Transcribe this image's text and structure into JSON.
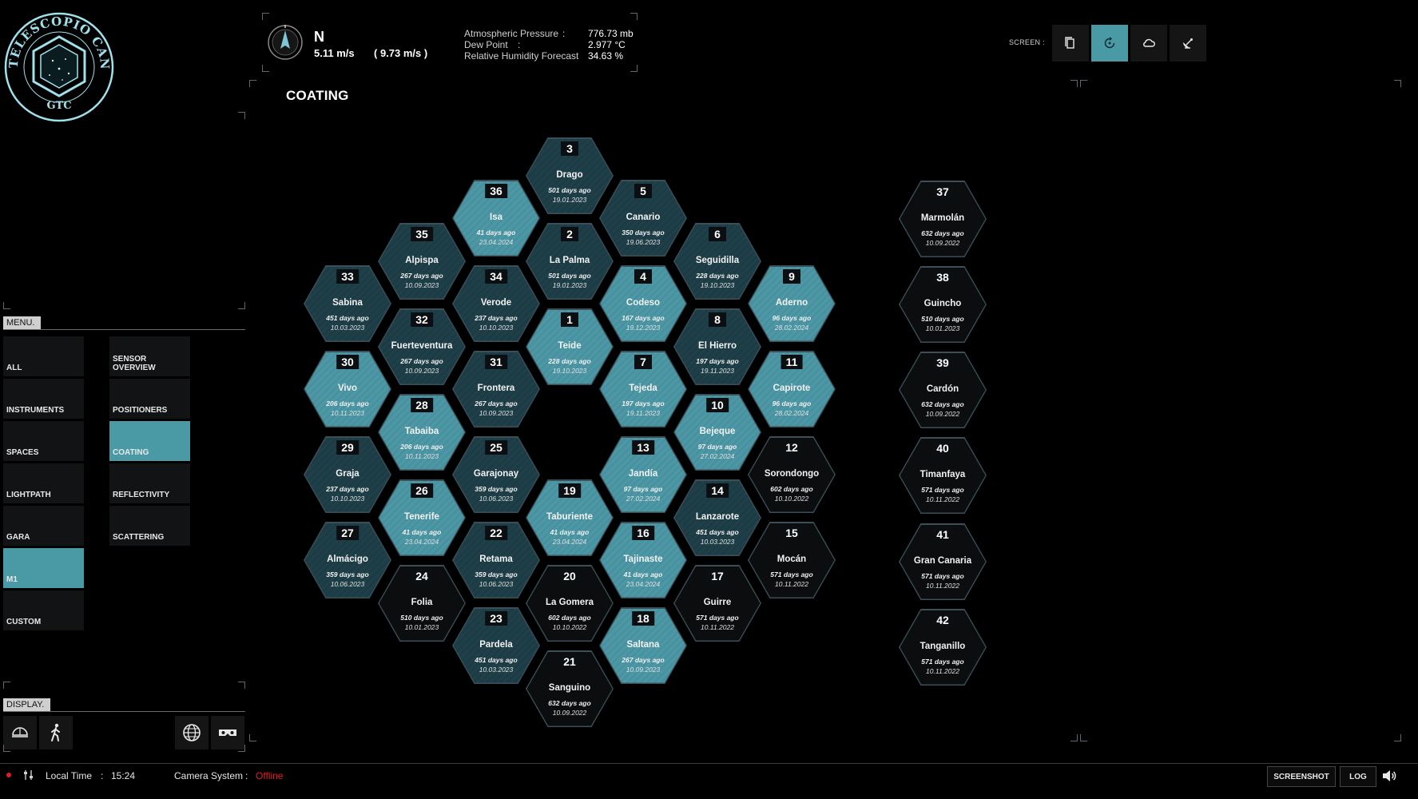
{
  "logo": {
    "top_text": "GRAN TELESCOPIO CANARIAS",
    "bottom_text": "GTC"
  },
  "weather": {
    "wind_direction": "N",
    "wind_speed": "5.11 m/s",
    "wind_gust": "( 9.73 m/s )",
    "rows": [
      {
        "label": "Atmospheric Pressure",
        "colon": ":",
        "value": "776.73 mb"
      },
      {
        "label": "Dew Point",
        "colon": ":",
        "value": "2.977 °C"
      },
      {
        "label": "Relative Humidity Forecast",
        "colon": "",
        "value": "34.63 %"
      }
    ]
  },
  "page_title": "COATING",
  "screen": {
    "label": "SCREEN :",
    "buttons": [
      {
        "name": "copy-icon",
        "active": false
      },
      {
        "name": "rotate-icon",
        "active": true
      },
      {
        "name": "cloud-icon",
        "active": false
      },
      {
        "name": "satellite-dish-icon",
        "active": false
      }
    ]
  },
  "menu": {
    "title": "MENU.",
    "left": [
      "ALL",
      "INSTRUMENTS",
      "SPACES",
      "LIGHTPATH",
      "GARA",
      "M1",
      "CUSTOM"
    ],
    "right": [
      "SENSOR OVERVIEW",
      "POSITIONERS",
      "COATING",
      "REFLECTIVITY",
      "SCATTERING"
    ],
    "active": [
      "M1",
      "COATING"
    ]
  },
  "display": {
    "title": "DISPLAY.",
    "buttons": [
      "dome-icon",
      "walking-person-icon",
      "globe-icon",
      "vr-headset-icon"
    ]
  },
  "segments": [
    {
      "num": "3",
      "name": "Drago",
      "ago": "501 days ago",
      "date": "19.01.2023",
      "style": "dteal"
    },
    {
      "num": "36",
      "name": "Isa",
      "ago": "41 days ago",
      "date": "23.04.2024",
      "style": "teal"
    },
    {
      "num": "5",
      "name": "Canario",
      "ago": "350 days ago",
      "date": "19.06.2023",
      "style": "dteal"
    },
    {
      "num": "35",
      "name": "Alpispa",
      "ago": "267 days ago",
      "date": "10.09.2023",
      "style": "dteal"
    },
    {
      "num": "2",
      "name": "La Palma",
      "ago": "501 days ago",
      "date": "19.01.2023",
      "style": "dteal"
    },
    {
      "num": "6",
      "name": "Seguidilla",
      "ago": "228 days ago",
      "date": "19.10.2023",
      "style": "dteal"
    },
    {
      "num": "33",
      "name": "Sabina",
      "ago": "451 days ago",
      "date": "10.03.2023",
      "style": "dteal"
    },
    {
      "num": "34",
      "name": "Verode",
      "ago": "237 days ago",
      "date": "10.10.2023",
      "style": "dteal"
    },
    {
      "num": "4",
      "name": "Codeso",
      "ago": "167 days ago",
      "date": "19.12.2023",
      "style": "teal"
    },
    {
      "num": "9",
      "name": "Aderno",
      "ago": "96 days ago",
      "date": "28.02.2024",
      "style": "teal"
    },
    {
      "num": "32",
      "name": "Fuerteventura",
      "ago": "267 days ago",
      "date": "10.09.2023",
      "style": "dteal"
    },
    {
      "num": "1",
      "name": "Teide",
      "ago": "228 days ago",
      "date": "19.10.2023",
      "style": "teal"
    },
    {
      "num": "8",
      "name": "El Hierro",
      "ago": "197 days ago",
      "date": "19.11.2023",
      "style": "dteal"
    },
    {
      "num": "30",
      "name": "Vivo",
      "ago": "206 days ago",
      "date": "10.11.2023",
      "style": "teal"
    },
    {
      "num": "31",
      "name": "Frontera",
      "ago": "267 days ago",
      "date": "10.09.2023",
      "style": "dteal"
    },
    {
      "num": "7",
      "name": "Tejeda",
      "ago": "197 days ago",
      "date": "19.11.2023",
      "style": "teal"
    },
    {
      "num": "11",
      "name": "Capirote",
      "ago": "96 days ago",
      "date": "28.02.2024",
      "style": "teal"
    },
    {
      "num": "28",
      "name": "Tabaiba",
      "ago": "206 days ago",
      "date": "10.11.2023",
      "style": "teal"
    },
    {
      "num": "10",
      "name": "Bejeque",
      "ago": "97 days ago",
      "date": "27.02.2024",
      "style": "teal"
    },
    {
      "num": "29",
      "name": "Graja",
      "ago": "237 days ago",
      "date": "10.10.2023",
      "style": "dteal"
    },
    {
      "num": "25",
      "name": "Garajonay",
      "ago": "359 days ago",
      "date": "10.06.2023",
      "style": "dteal"
    },
    {
      "num": "13",
      "name": "Jandía",
      "ago": "97 days ago",
      "date": "27.02.2024",
      "style": "teal"
    },
    {
      "num": "12",
      "name": "Sorondongo",
      "ago": "602 days ago",
      "date": "10.10.2022",
      "style": "black"
    },
    {
      "num": "26",
      "name": "Tenerife",
      "ago": "41 days ago",
      "date": "23.04.2024",
      "style": "teal"
    },
    {
      "num": "19",
      "name": "Taburiente",
      "ago": "41 days ago",
      "date": "23.04.2024",
      "style": "teal"
    },
    {
      "num": "14",
      "name": "Lanzarote",
      "ago": "451 days ago",
      "date": "10.03.2023",
      "style": "dteal"
    },
    {
      "num": "27",
      "name": "Almácigo",
      "ago": "359 days ago",
      "date": "10.06.2023",
      "style": "dteal"
    },
    {
      "num": "22",
      "name": "Retama",
      "ago": "359 days ago",
      "date": "10.06.2023",
      "style": "dteal"
    },
    {
      "num": "16",
      "name": "Tajinaste",
      "ago": "41 days ago",
      "date": "23.04.2024",
      "style": "teal"
    },
    {
      "num": "15",
      "name": "Mocán",
      "ago": "571 days ago",
      "date": "10.11.2022",
      "style": "black"
    },
    {
      "num": "24",
      "name": "Folia",
      "ago": "510 days ago",
      "date": "10.01.2023",
      "style": "black"
    },
    {
      "num": "20",
      "name": "La Gomera",
      "ago": "602 days ago",
      "date": "10.10.2022",
      "style": "black"
    },
    {
      "num": "17",
      "name": "Guirre",
      "ago": "571 days ago",
      "date": "10.11.2022",
      "style": "black"
    },
    {
      "num": "23",
      "name": "Pardela",
      "ago": "451 days ago",
      "date": "10.03.2023",
      "style": "dteal"
    },
    {
      "num": "18",
      "name": "Saltana",
      "ago": "267 days ago",
      "date": "10.09.2023",
      "style": "teal"
    },
    {
      "num": "21",
      "name": "Sanguino",
      "ago": "632 days ago",
      "date": "10.09.2022",
      "style": "black"
    }
  ],
  "spares": [
    {
      "num": "37",
      "name": "Marmolán",
      "ago": "632 days ago",
      "date": "10.09.2022",
      "style": "black"
    },
    {
      "num": "38",
      "name": "Guincho",
      "ago": "510 days ago",
      "date": "10.01.2023",
      "style": "black"
    },
    {
      "num": "39",
      "name": "Cardón",
      "ago": "632 days ago",
      "date": "10.09.2022",
      "style": "black"
    },
    {
      "num": "40",
      "name": "Timanfaya",
      "ago": "571 days ago",
      "date": "10.11.2022",
      "style": "black"
    },
    {
      "num": "41",
      "name": "Gran Canaria",
      "ago": "571 days ago",
      "date": "10.11.2022",
      "style": "black"
    },
    {
      "num": "42",
      "name": "Tanganillo",
      "ago": "571 days ago",
      "date": "10.11.2022",
      "style": "black"
    }
  ],
  "bottom_bar": {
    "local_time_label": "Local Time",
    "local_time_colon": ":",
    "local_time": "15:24",
    "camera_label": "Camera System",
    "camera_colon": ":",
    "camera_status": "Offline",
    "camera_status_color": "#e02020",
    "screenshot_label": "SCREENSHOT",
    "log_label": "LOG"
  }
}
